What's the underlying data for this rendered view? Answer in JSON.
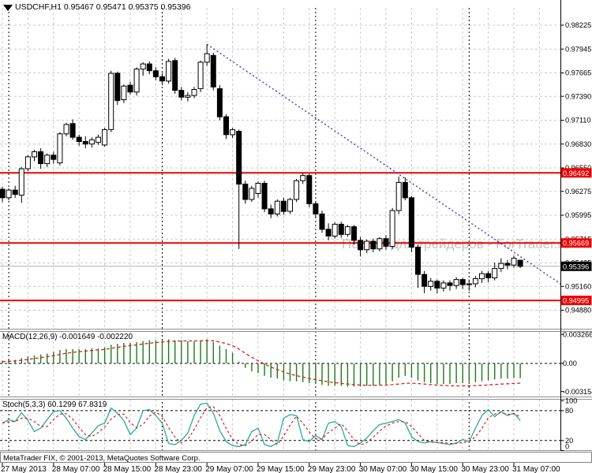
{
  "window": {
    "title": "USDCHF,H1 0.95467 0.95471 0.95375 0.95396"
  },
  "watermark": {
    "text": "Портал для трейдеров - ForTrader.ru"
  },
  "footer": {
    "copyright": "MetaTrader FIX, © 2001-2013, MetaQuotes Software Corp."
  },
  "colors": {
    "background": "#ffffff",
    "grid": "#c9c9c9",
    "bull": "#ffffff",
    "bear": "#000000",
    "outline": "#000000",
    "red_line": "#ee0000",
    "label_box_red": "#ee0000",
    "label_box_current": "#000000",
    "macd_hist": "#1b7a1b",
    "signal_red": "#d42020",
    "stoch_k": "#2aa8a0",
    "trendline": "#3c3cb4",
    "day_separator": "#000000",
    "current_price_line": "#b0b0b0",
    "watermark": "#c4c4c4",
    "axis_line": "#000000"
  },
  "chart_data": {
    "type": "candlestick",
    "symbol": "USDCHF",
    "timeframe": "H1",
    "start_time": "2013-05-27 23:00",
    "interval_hours": 1,
    "last_bar": {
      "open": 0.95467,
      "high": 0.95471,
      "low": 0.95375,
      "close": 0.95396
    },
    "price_axis": [
      0.98225,
      0.97945,
      0.97665,
      0.9739,
      0.9711,
      0.9683,
      0.9655,
      0.96275,
      0.95995,
      0.95715,
      0.95435,
      0.9516,
      0.9488
    ],
    "red_levels": [
      0.96492,
      0.95669,
      0.94995
    ],
    "current_price": 0.95396,
    "trendline": {
      "from_bar": 32,
      "from_price": 0.98,
      "to_bar": 87.3,
      "to_price": 0.9519
    },
    "day_separator_bars": [
      1,
      25,
      49,
      73
    ],
    "time_ticks": [
      {
        "bar": 0,
        "label": "27 May 2013"
      },
      {
        "bar": 8,
        "label": "28 May 07:00"
      },
      {
        "bar": 16,
        "label": "28 May 15:00"
      },
      {
        "bar": 24,
        "label": "28 May 23:00"
      },
      {
        "bar": 32,
        "label": "29 May 07:00"
      },
      {
        "bar": 40,
        "label": "29 May 15:00"
      },
      {
        "bar": 48,
        "label": "29 May 23:00"
      },
      {
        "bar": 56,
        "label": "30 May 07:00"
      },
      {
        "bar": 64,
        "label": "30 May 15:00"
      },
      {
        "bar": 72,
        "label": "30 May 23:00"
      },
      {
        "bar": 80,
        "label": "31 May 07:00"
      }
    ],
    "ohlc": [
      [
        0.963,
        0.9633,
        0.9615,
        0.962
      ],
      [
        0.962,
        0.9631,
        0.9617,
        0.9629
      ],
      [
        0.9629,
        0.9634,
        0.962,
        0.9624
      ],
      [
        0.9623,
        0.9656,
        0.9614,
        0.9654
      ],
      [
        0.9654,
        0.967,
        0.9651,
        0.9668
      ],
      [
        0.9668,
        0.9676,
        0.9663,
        0.9674
      ],
      [
        0.9674,
        0.9678,
        0.9654,
        0.966
      ],
      [
        0.966,
        0.9672,
        0.9656,
        0.967
      ],
      [
        0.967,
        0.9674,
        0.966,
        0.9665
      ],
      [
        0.9661,
        0.9697,
        0.9658,
        0.9695
      ],
      [
        0.9695,
        0.9708,
        0.9692,
        0.9706
      ],
      [
        0.9707,
        0.9712,
        0.9688,
        0.9691
      ],
      [
        0.9691,
        0.9694,
        0.9681,
        0.9686
      ],
      [
        0.9686,
        0.9692,
        0.9678,
        0.9683
      ],
      [
        0.9683,
        0.9691,
        0.9679,
        0.9688
      ],
      [
        0.9685,
        0.9694,
        0.9682,
        0.9691
      ],
      [
        0.9682,
        0.9702,
        0.968,
        0.97
      ],
      [
        0.97,
        0.9769,
        0.9697,
        0.9766
      ],
      [
        0.9766,
        0.9768,
        0.9729,
        0.9734
      ],
      [
        0.9735,
        0.9753,
        0.9731,
        0.9751
      ],
      [
        0.9752,
        0.9756,
        0.9741,
        0.9744
      ],
      [
        0.9744,
        0.9773,
        0.974,
        0.9771
      ],
      [
        0.9771,
        0.9779,
        0.9763,
        0.9777
      ],
      [
        0.9777,
        0.978,
        0.9765,
        0.9769
      ],
      [
        0.9769,
        0.9773,
        0.9758,
        0.9762
      ],
      [
        0.9762,
        0.9766,
        0.9752,
        0.9757
      ],
      [
        0.9757,
        0.9783,
        0.9754,
        0.978
      ],
      [
        0.9781,
        0.9784,
        0.9742,
        0.9746
      ],
      [
        0.9746,
        0.975,
        0.9734,
        0.9738
      ],
      [
        0.9738,
        0.9744,
        0.9733,
        0.974
      ],
      [
        0.974,
        0.975,
        0.9737,
        0.9747
      ],
      [
        0.9748,
        0.9781,
        0.9744,
        0.9779
      ],
      [
        0.9779,
        0.98,
        0.9775,
        0.9789
      ],
      [
        0.9787,
        0.979,
        0.9746,
        0.975
      ],
      [
        0.9748,
        0.9752,
        0.9711,
        0.9715
      ],
      [
        0.9715,
        0.9718,
        0.9689,
        0.9694
      ],
      [
        0.9694,
        0.9702,
        0.969,
        0.97
      ],
      [
        0.9698,
        0.97,
        0.956,
        0.9636
      ],
      [
        0.9636,
        0.964,
        0.9613,
        0.9618
      ],
      [
        0.9618,
        0.9634,
        0.9615,
        0.9631
      ],
      [
        0.9625,
        0.9639,
        0.962,
        0.9637
      ],
      [
        0.9637,
        0.964,
        0.9603,
        0.9607
      ],
      [
        0.9607,
        0.9612,
        0.9596,
        0.9601
      ],
      [
        0.9601,
        0.9618,
        0.9598,
        0.9616
      ],
      [
        0.9616,
        0.962,
        0.96,
        0.9604
      ],
      [
        0.9604,
        0.962,
        0.9601,
        0.9618
      ],
      [
        0.9618,
        0.9642,
        0.9615,
        0.964
      ],
      [
        0.964,
        0.9649,
        0.9636,
        0.9646
      ],
      [
        0.9646,
        0.9648,
        0.9609,
        0.9613
      ],
      [
        0.9613,
        0.9616,
        0.9597,
        0.9601
      ],
      [
        0.9601,
        0.9605,
        0.9579,
        0.9583
      ],
      [
        0.9583,
        0.959,
        0.957,
        0.9575
      ],
      [
        0.9575,
        0.9591,
        0.9572,
        0.9589
      ],
      [
        0.9589,
        0.9592,
        0.9573,
        0.9577
      ],
      [
        0.9577,
        0.9588,
        0.9574,
        0.9586
      ],
      [
        0.9586,
        0.9588,
        0.9565,
        0.957
      ],
      [
        0.957,
        0.9574,
        0.9551,
        0.9559
      ],
      [
        0.9559,
        0.9571,
        0.9555,
        0.9569
      ],
      [
        0.9569,
        0.9572,
        0.9556,
        0.956
      ],
      [
        0.956,
        0.9574,
        0.9557,
        0.9572
      ],
      [
        0.9572,
        0.9576,
        0.9559,
        0.9563
      ],
      [
        0.9563,
        0.9608,
        0.956,
        0.9605
      ],
      [
        0.9605,
        0.9645,
        0.9601,
        0.9638
      ],
      [
        0.9638,
        0.9644,
        0.9617,
        0.962
      ],
      [
        0.962,
        0.9622,
        0.9556,
        0.9562
      ],
      [
        0.9562,
        0.9565,
        0.9514,
        0.953
      ],
      [
        0.953,
        0.9534,
        0.9508,
        0.9516
      ],
      [
        0.9516,
        0.9526,
        0.9511,
        0.9522
      ],
      [
        0.9522,
        0.9524,
        0.9508,
        0.9514
      ],
      [
        0.9514,
        0.9523,
        0.951,
        0.952
      ],
      [
        0.952,
        0.9523,
        0.9511,
        0.9517
      ],
      [
        0.9517,
        0.9527,
        0.9513,
        0.9524
      ],
      [
        0.9524,
        0.9526,
        0.9513,
        0.9518
      ],
      [
        0.9518,
        0.9524,
        0.9511,
        0.9519
      ],
      [
        0.9519,
        0.9528,
        0.9515,
        0.9525
      ],
      [
        0.9525,
        0.9534,
        0.952,
        0.9531
      ],
      [
        0.9531,
        0.9534,
        0.9521,
        0.9526
      ],
      [
        0.9526,
        0.9544,
        0.9523,
        0.9537
      ],
      [
        0.9537,
        0.9549,
        0.9533,
        0.9543
      ],
      [
        0.9543,
        0.9547,
        0.9536,
        0.9541
      ],
      [
        0.9541,
        0.9552,
        0.9538,
        0.9549
      ],
      [
        0.95467,
        0.95471,
        0.95375,
        0.95396
      ]
    ],
    "macd": {
      "label": "MACD(12,26,9) -0.001649 -0.002220",
      "params": "12,26,9",
      "main_value": -0.001649,
      "signal_value": -0.00222,
      "axis_labels": [
        "0.003266",
        "0.00",
        "-0.003154"
      ],
      "axis_values": [
        0.003266,
        0,
        -0.003154
      ],
      "main": [
        0.0003,
        0.0004,
        0.0004,
        0.0006,
        0.0008,
        0.0009,
        0.001,
        0.0011,
        0.0013,
        0.0015,
        0.0016,
        0.0016,
        0.0016,
        0.0016,
        0.0017,
        0.0017,
        0.0018,
        0.0021,
        0.0022,
        0.0023,
        0.0023,
        0.0024,
        0.0025,
        0.0026,
        0.0026,
        0.0026,
        0.0027,
        0.0026,
        0.0026,
        0.0025,
        0.0025,
        0.0026,
        0.0027,
        0.0024,
        0.002,
        0.0016,
        0.0012,
        0.0002,
        -0.0005,
        -0.0009,
        -0.0011,
        -0.0014,
        -0.0016,
        -0.0017,
        -0.0019,
        -0.002,
        -0.002,
        -0.0021,
        -0.0022,
        -0.0023,
        -0.0024,
        -0.0025,
        -0.0025,
        -0.0025,
        -0.0026,
        -0.0026,
        -0.0026,
        -0.0025,
        -0.0025,
        -0.0024,
        -0.0023,
        -0.002,
        -0.0016,
        -0.0014,
        -0.0016,
        -0.0019,
        -0.0021,
        -0.0022,
        -0.0023,
        -0.0023,
        -0.0023,
        -0.0022,
        -0.0022,
        -0.0021,
        -0.0021,
        -0.002,
        -0.0019,
        -0.0018,
        -0.0017,
        -0.0017,
        -0.00165,
        -0.001649
      ],
      "signal": [
        0.0002,
        0.00024,
        0.00028,
        0.00035,
        0.00045,
        0.00055,
        0.00065,
        0.00075,
        0.00087,
        0.00101,
        0.00114,
        0.00124,
        0.00132,
        0.00138,
        0.00145,
        0.00151,
        0.00157,
        0.00169,
        0.0018,
        0.00191,
        0.002,
        0.00209,
        0.00218,
        0.00227,
        0.00234,
        0.0024,
        0.00247,
        0.0025,
        0.00252,
        0.00252,
        0.00252,
        0.00254,
        0.00257,
        0.00253,
        0.00241,
        0.00223,
        0.002,
        0.00161,
        0.00114,
        0.00069,
        0.0003,
        -7e-05,
        -0.00041,
        -0.00069,
        -0.00096,
        -0.00119,
        -0.00137,
        -0.00153,
        -0.00168,
        -0.00182,
        -0.00194,
        -0.00207,
        -0.00216,
        -0.00224,
        -0.00232,
        -0.00238,
        -0.00243,
        -0.00245,
        -0.00246,
        -0.00244,
        -0.00242,
        -0.00238,
        -0.00232,
        -0.00224,
        -0.00222,
        -0.00226,
        -0.00232,
        -0.00238,
        -0.00243,
        -0.00247,
        -0.0025,
        -0.00252,
        -0.00252,
        -0.00251,
        -0.00249,
        -0.00246,
        -0.00242,
        -0.00237,
        -0.00232,
        -0.00228,
        -0.00225,
        -0.00222
      ]
    },
    "stoch": {
      "label": "Stoch(5,3,3) 60.1299 67.8319",
      "params": "5,3,3",
      "k_value": 60.1299,
      "d_value": 67.8319,
      "levels": [
        100,
        80,
        20,
        0
      ],
      "dashed_levels": [
        80,
        20
      ],
      "k": [
        55,
        62,
        58,
        76,
        60,
        38,
        45,
        62,
        78,
        80,
        65,
        45,
        28,
        22,
        35,
        50,
        55,
        85,
        75,
        60,
        32,
        45,
        80,
        82,
        70,
        55,
        14,
        12,
        20,
        35,
        70,
        93,
        95,
        75,
        40,
        18,
        10,
        8,
        12,
        38,
        45,
        12,
        8,
        15,
        65,
        72,
        70,
        22,
        18,
        30,
        22,
        55,
        58,
        48,
        10,
        8,
        15,
        25,
        40,
        52,
        55,
        58,
        62,
        55,
        28,
        18,
        15,
        18,
        16,
        14,
        12,
        15,
        22,
        18,
        45,
        70,
        82,
        68,
        78,
        70,
        75,
        60.13
      ],
      "d": [
        55,
        58,
        58,
        65,
        65,
        58,
        48,
        48,
        62,
        73,
        74,
        63,
        46,
        32,
        28,
        36,
        47,
        63,
        72,
        73,
        56,
        46,
        52,
        69,
        77,
        69,
        46,
        27,
        15,
        22,
        42,
        66,
        86,
        88,
        70,
        44,
        23,
        12,
        10,
        19,
        32,
        32,
        22,
        12,
        29,
        51,
        69,
        55,
        37,
        23,
        23,
        36,
        45,
        54,
        39,
        22,
        11,
        16,
        27,
        39,
        49,
        55,
        58,
        58,
        48,
        34,
        20,
        17,
        16,
        16,
        14,
        14,
        16,
        18,
        28,
        44,
        66,
        73,
        76,
        72,
        74,
        67.83
      ]
    }
  }
}
